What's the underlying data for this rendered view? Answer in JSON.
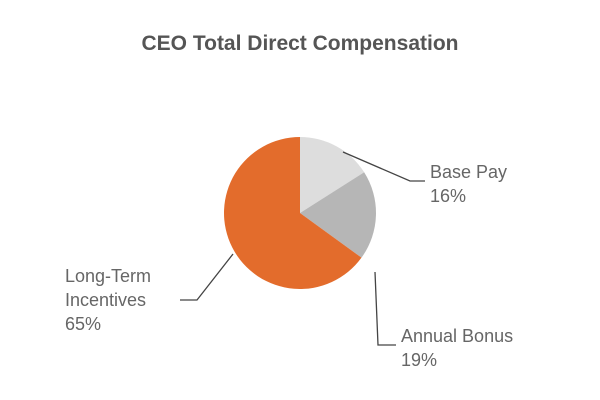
{
  "chart_data": {
    "type": "pie",
    "title": "CEO Total Direct Compensation",
    "slices": [
      {
        "label": "Base Pay",
        "value": 16,
        "value_label": "16%",
        "color": "#dddddd"
      },
      {
        "label": "Annual Bonus",
        "value": 19,
        "value_label": "19%",
        "color": "#b6b6b6"
      },
      {
        "label": "Long-Term Incentives",
        "value": 65,
        "value_label": "65%",
        "color": "#e36c2c"
      }
    ],
    "legend": "none",
    "data_labels": "outside with leader lines"
  }
}
